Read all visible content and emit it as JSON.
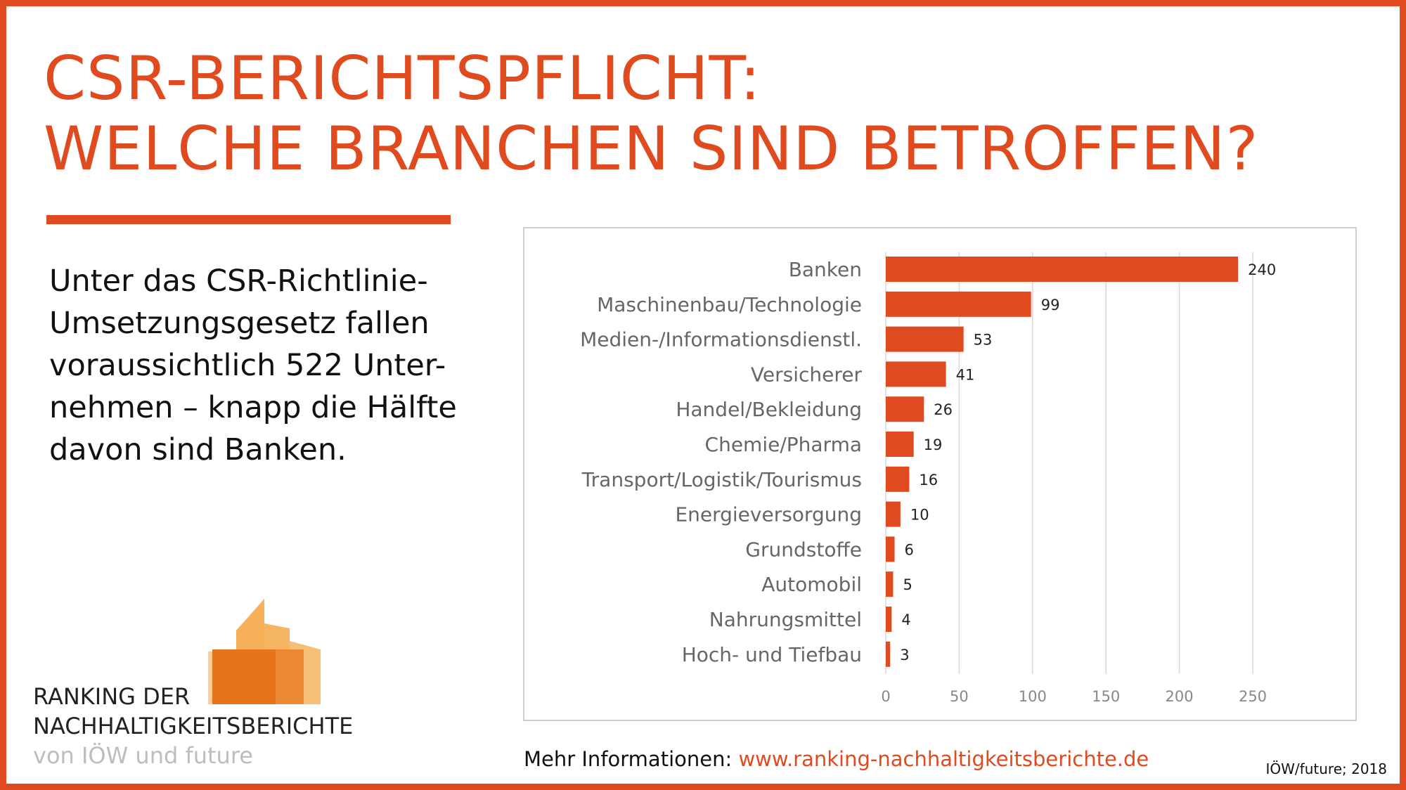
{
  "header": {
    "title_line1": "CSR-BERICHTSPFLICHT:",
    "title_line2": "WELCHE BRANCHEN SIND BETROFFEN?"
  },
  "intro": {
    "lines": [
      "Unter das CSR-Richtlinie-",
      "Umsetzungsgesetz fallen",
      "voraussichtlich 522 Unter-",
      "nehmen – knapp die Hälfte",
      "davon sind Banken."
    ]
  },
  "logo": {
    "line1": "RANKING DER",
    "line2": "NACHHALTIGKEITSBERICHTE",
    "line3": "von IÖW und future"
  },
  "footer": {
    "info_label": "Mehr Informationen:",
    "link_text": "www.ranking-nachhaltigkeitsberichte.de",
    "source": "IÖW/future; 2018"
  },
  "colors": {
    "accent": "#e04a1f",
    "bar": "#e04a1f",
    "gridline": "#d9d9d9",
    "logo_orange": "#e8741a",
    "logo_light": "#f4a23c"
  },
  "chart_data": {
    "type": "bar",
    "orientation": "horizontal",
    "categories": [
      "Banken",
      "Maschinenbau/Technologie",
      "Medien-/Informationsdienstl.",
      "Versicherer",
      "Handel/Bekleidung",
      "Chemie/Pharma",
      "Transport/Logistik/Tourismus",
      "Energieversorgung",
      "Grundstoffe",
      "Automobil",
      "Nahrungsmittel",
      "Hoch- und Tiefbau"
    ],
    "values": [
      240,
      99,
      53,
      41,
      26,
      19,
      16,
      10,
      6,
      5,
      4,
      3
    ],
    "xticks": [
      0,
      50,
      100,
      150,
      200,
      250
    ],
    "xlim": [
      0,
      250
    ],
    "grid": true,
    "data_labels": true
  }
}
